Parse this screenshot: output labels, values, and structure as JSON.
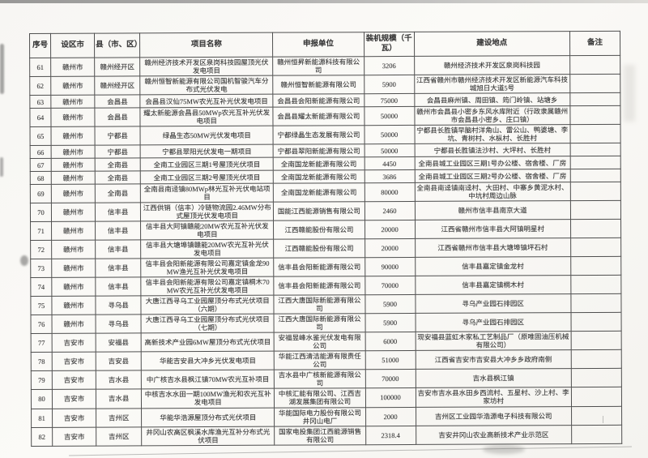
{
  "document": {
    "colors": {
      "ink": "#383838",
      "border": "#4f4f4f",
      "paper": "#faf9f6"
    }
  },
  "table": {
    "headers": {
      "serial": "序号",
      "city": "设区市",
      "county": "县（市、区）",
      "project": "项目名称",
      "applicant": "申报单位",
      "capacity": "装机规模（千瓦）",
      "location": "建设地点",
      "remark": "备注"
    },
    "rows": [
      {
        "no": "61",
        "city": "赣州市",
        "county": "赣州经开区",
        "project": "赣州经济技术开发区泉岗科技园屋顶光伏发电项目",
        "applicant": "赣州恒昇新能源科技有限公司",
        "capacity": "3206",
        "location": "赣州经济技术开发区泉岗科技园",
        "remark": ""
      },
      {
        "no": "62",
        "city": "赣州市",
        "county": "赣州经开区",
        "project": "赣州恒智新能源有限公司国机智骏汽车分布式光伏发电",
        "applicant": "赣州恒智新能源有限公司",
        "capacity": "5900",
        "location": "江西省赣州市赣州经济技术开发区新能源汽车科技城旭日大道5号",
        "remark": ""
      },
      {
        "no": "63",
        "city": "赣州市",
        "county": "会昌县",
        "project": "会昌县汉仙75MW农光互补光伏发电项目",
        "applicant": "会昌县会阳新能源有限公司",
        "capacity": "75000",
        "location": "会昌县麻州镇、周田镇、筠门岭镇、站塘乡",
        "remark": ""
      },
      {
        "no": "64",
        "city": "赣州市",
        "county": "会昌县",
        "project": "耀太新能源会昌县50MWp农光互补光伏发电项目",
        "applicant": "会昌县耀太新能源有限公司",
        "capacity": "50000",
        "location": "赣州市会昌县小密乡东风水库附近（行政隶属赣州市会昌县小密乡、庄口镇）",
        "remark": ""
      },
      {
        "no": "65",
        "city": "赣州市",
        "county": "宁都县",
        "project": "绿晶生态50MW光伏发电项目",
        "applicant": "宁都绿晶生态发展有限公司",
        "capacity": "50000",
        "location": "宁都县长胜镇早脑村洋角山、雷公山、鸭婆塘、李坑、青树村、水枞村、长胜村",
        "remark": ""
      },
      {
        "no": "66",
        "city": "赣州市",
        "county": "宁都县",
        "project": "宁都县翠阳光伏发电一期项目",
        "applicant": "宁都县翠阳新能源有限公司",
        "capacity": "50000",
        "location": "宁都县长胜镇法沙村、大坪村、长胜村",
        "remark": ""
      },
      {
        "no": "67",
        "city": "赣州市",
        "county": "全南县",
        "project": "全南工业园区三期1号屋顶光伏项目",
        "applicant": "全南国龙新能源有限公司",
        "capacity": "4450",
        "location": "全南县城工业园区三期1号办公楼、宿舍楼、厂房",
        "remark": ""
      },
      {
        "no": "68",
        "city": "赣州市",
        "county": "全南县",
        "project": "全南工业园区三期2号屋顶光伏项目",
        "applicant": "全南国龙新能源有限公司",
        "capacity": "3686",
        "location": "全南县城工业园区三期2号办公楼、宿舍楼、厂房",
        "remark": ""
      },
      {
        "no": "69",
        "city": "赣州市",
        "county": "全南县",
        "project": "全南县南迳镇80MWp林光互补光伏电站项目",
        "applicant": "全南国龙新能源有限公司",
        "capacity": "80000",
        "location": "全南县南迳镇南迳村、大田村、中寨乡黄泥水村、中坑村周边山脉",
        "remark": ""
      },
      {
        "no": "70",
        "city": "赣州市",
        "county": "信丰县",
        "project": "江西供销（信丰）冷链物流园2.46MW分布式屋顶光伏发电项目",
        "applicant": "国能江西能源销售有限公司",
        "capacity": "2460",
        "location": "赣州市信丰县南京大道",
        "remark": ""
      },
      {
        "no": "71",
        "city": "赣州市",
        "county": "信丰县",
        "project": "信丰县大阿镇赣能20MW农光互补光伏发电项目",
        "applicant": "江西赣能股份有限公司",
        "capacity": "20000",
        "location": "江西省赣州市信丰县大阿镇明星村",
        "remark": ""
      },
      {
        "no": "72",
        "city": "赣州市",
        "county": "信丰县",
        "project": "信丰县大塘埠镇赣能20MW农光互补光伏发电项目",
        "applicant": "江西赣能股份有限公司",
        "capacity": "20000",
        "location": "江西省赣州市信丰县大塘埠镇坪石村",
        "remark": ""
      },
      {
        "no": "73",
        "city": "赣州市",
        "county": "信丰县",
        "project": "信丰县会阳新能源有限公司嘉定镇金龙90MW渔光互补光伏发电项目",
        "applicant": "信丰县会阳新能源有限公司",
        "capacity": "90000",
        "location": "信丰县嘉定镇金龙村",
        "remark": ""
      },
      {
        "no": "74",
        "city": "赣州市",
        "county": "信丰县",
        "project": "信丰县会阳新能源有限公司嘉定镇桐木70MW农光互补光伏发电项目",
        "applicant": "信丰县会阳新能源有限公司",
        "capacity": "70000",
        "location": "信丰县嘉定镇桐木村",
        "remark": ""
      },
      {
        "no": "75",
        "city": "赣州市",
        "county": "寻乌县",
        "project": "大唐江西寻乌工业园屋顶分布式光伏项目（六期）",
        "applicant": "江西大唐国际新能源有限公司",
        "capacity": "5900",
        "location": "寻乌产业园石排园区",
        "remark": ""
      },
      {
        "no": "76",
        "city": "赣州市",
        "county": "寻乌县",
        "project": "大唐江西寻乌工业园屋顶分布式光伏项目（七期）",
        "applicant": "江西大唐国际新能源有限公司",
        "capacity": "5900",
        "location": "寻乌产业园石排园区",
        "remark": ""
      },
      {
        "no": "77",
        "city": "吉安市",
        "county": "安福县",
        "project": "高新技术产业园6MW屋顶分布式光伏项目",
        "applicant": "安福昱峰水鉴光伏发电有限公司",
        "capacity": "6000",
        "location": "现安福县蓝虹木家私工艺制品厂（原唯固油压机械有限公司）",
        "remark": ""
      },
      {
        "no": "78",
        "city": "吉安市",
        "county": "吉安县",
        "project": "华能吉安县大冲乡光伏发电项目",
        "applicant": "华能江西清洁能源有限责任公司",
        "capacity": "51000",
        "location": "江西省吉安市吉安县大冲乡乡政府南侧",
        "remark": ""
      },
      {
        "no": "79",
        "city": "吉安市",
        "county": "吉水县",
        "project": "中广核吉水县枫江镇70MW农光互补项目",
        "applicant": "吉水县中广核新能源有限公司",
        "capacity": "70000",
        "location": "吉水县枫江镇",
        "remark": ""
      },
      {
        "no": "80",
        "city": "吉安市",
        "county": "吉水县",
        "project": "中核吉水水田一期100MW渔光和农光互补发电项目",
        "applicant": "中核汇能有限公司、江西吉湖发展集团有限公司",
        "capacity": "100000",
        "location": "吉安市吉水县水田乡西流村、五星村、沙上村、李家坊村",
        "remark": ""
      },
      {
        "no": "81",
        "city": "吉安市",
        "county": "吉州区",
        "project": "华能华浩源屋顶分布式光伏项目",
        "applicant": "华能国际电力股份有限公司井冈山电厂",
        "capacity": "2000",
        "location": "吉州区工业园华浩源电子科技有限公司",
        "remark": ""
      },
      {
        "no": "82",
        "city": "吉安市",
        "county": "吉州区",
        "project": "井冈山农高区枫溪水库渔光互补分布式光伏项目",
        "applicant": "国家电投集团江西能源销售有限公司",
        "capacity": "2318.4",
        "location": "吉安井冈山农业高新技术产业示范区",
        "remark": ""
      }
    ]
  }
}
